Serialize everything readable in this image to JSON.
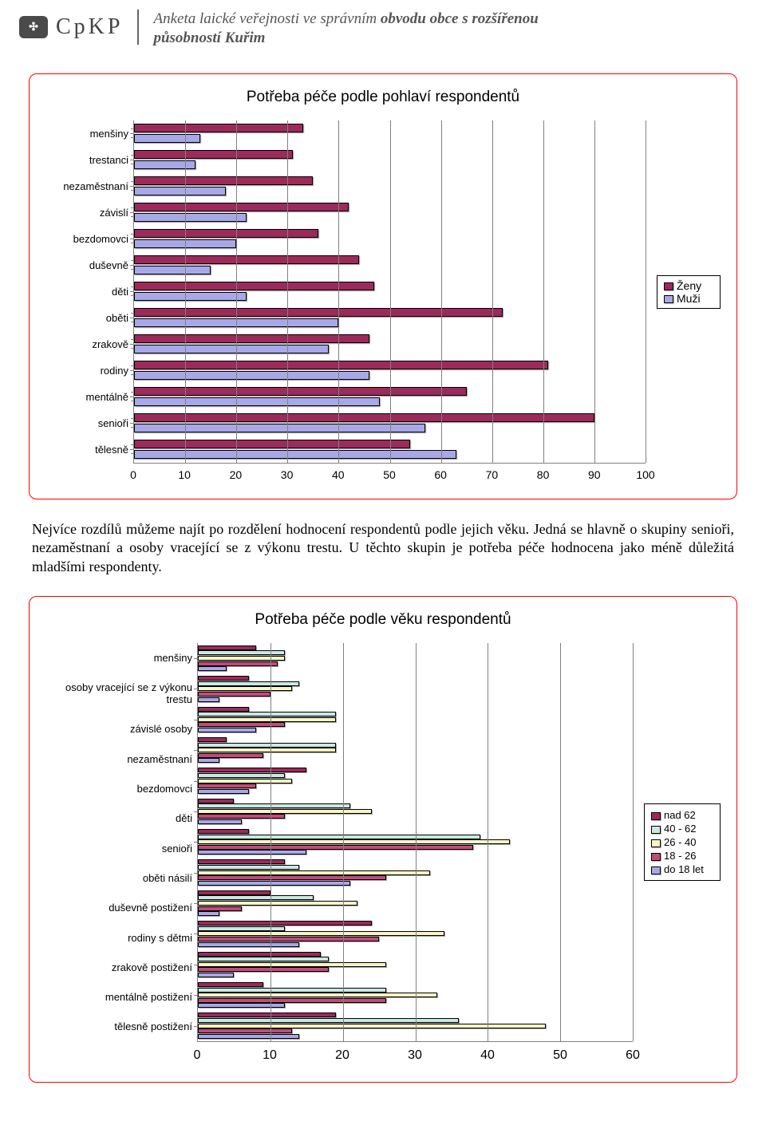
{
  "header": {
    "logo_text": "CpKP",
    "title_prefix": "Anketa laické veřejnosti ve správním",
    "title_bold1": "obvodu obce s rozšířenou působností",
    "title_bold2": "Kuřim"
  },
  "chart1": {
    "title": "Potřeba péče podle pohlaví respondentů",
    "xmax": 100,
    "xtick_step": 10,
    "grid_color": "#808080",
    "colors": {
      "zeny": "#9c2a5a",
      "muzi": "#a8a8e8"
    },
    "legend": [
      {
        "label": "Ženy",
        "color": "#9c2a5a"
      },
      {
        "label": "Muži",
        "color": "#a8a8e8"
      }
    ],
    "categories": [
      {
        "label": "menšiny",
        "zeny": 33,
        "muzi": 13
      },
      {
        "label": "trestanci",
        "zeny": 31,
        "muzi": 12
      },
      {
        "label": "nezaměstnaní",
        "zeny": 35,
        "muzi": 18
      },
      {
        "label": "závislí",
        "zeny": 42,
        "muzi": 22
      },
      {
        "label": "bezdomovci",
        "zeny": 36,
        "muzi": 20
      },
      {
        "label": "duševně",
        "zeny": 44,
        "muzi": 15
      },
      {
        "label": "děti",
        "zeny": 47,
        "muzi": 22
      },
      {
        "label": "oběti",
        "zeny": 72,
        "muzi": 40
      },
      {
        "label": "zrakově",
        "zeny": 46,
        "muzi": 38
      },
      {
        "label": "rodiny",
        "zeny": 81,
        "muzi": 46
      },
      {
        "label": "mentálně",
        "zeny": 65,
        "muzi": 48
      },
      {
        "label": "senioři",
        "zeny": 90,
        "muzi": 57
      },
      {
        "label": "tělesně",
        "zeny": 54,
        "muzi": 63
      }
    ]
  },
  "paragraph": "Nejvíce rozdílů můžeme najít po rozdělení hodnocení respondentů podle jejich věku. Jedná se hlavně o skupiny senioři, nezaměstnaní a osoby vracející se z výkonu trestu. U těchto skupin je potřeba péče hodnocena jako méně důležitá mladšími respondenty.",
  "chart2": {
    "title": "Potřeba péče podle věku respondentů",
    "xmax": 60,
    "xtick_step": 10,
    "grid_color": "#808080",
    "series": [
      {
        "key": "nad62",
        "label": "nad 62",
        "color": "#9c2a5a"
      },
      {
        "key": "g4062",
        "label": "40 - 62",
        "color": "#c8e8e4"
      },
      {
        "key": "g2640",
        "label": "26 - 40",
        "color": "#f8f4c4"
      },
      {
        "key": "g1826",
        "label": "18 - 26",
        "color": "#c44a7a"
      },
      {
        "key": "do18",
        "label": "do 18 let",
        "color": "#a8a8e8"
      }
    ],
    "categories": [
      {
        "label": "menšiny",
        "nad62": 8,
        "g4062": 12,
        "g2640": 12,
        "g1826": 11,
        "do18": 4
      },
      {
        "label": "osoby vracející se z výkonu trestu",
        "nad62": 7,
        "g4062": 14,
        "g2640": 13,
        "g1826": 10,
        "do18": 3
      },
      {
        "label": "závislé osoby",
        "nad62": 7,
        "g4062": 19,
        "g2640": 19,
        "g1826": 12,
        "do18": 8
      },
      {
        "label": "nezaměstnaní",
        "nad62": 4,
        "g4062": 19,
        "g2640": 19,
        "g1826": 9,
        "do18": 3
      },
      {
        "label": "bezdomovci",
        "nad62": 15,
        "g4062": 12,
        "g2640": 13,
        "g1826": 8,
        "do18": 7
      },
      {
        "label": "děti",
        "nad62": 5,
        "g4062": 21,
        "g2640": 24,
        "g1826": 12,
        "do18": 6
      },
      {
        "label": "senioři",
        "nad62": 7,
        "g4062": 39,
        "g2640": 43,
        "g1826": 38,
        "do18": 15
      },
      {
        "label": "oběti násilí",
        "nad62": 12,
        "g4062": 14,
        "g2640": 32,
        "g1826": 26,
        "do18": 21
      },
      {
        "label": "duševně postižení",
        "nad62": 10,
        "g4062": 16,
        "g2640": 22,
        "g1826": 6,
        "do18": 3
      },
      {
        "label": "rodiny s dětmi",
        "nad62": 24,
        "g4062": 12,
        "g2640": 34,
        "g1826": 25,
        "do18": 14
      },
      {
        "label": "zrakově postižení",
        "nad62": 17,
        "g4062": 18,
        "g2640": 26,
        "g1826": 18,
        "do18": 5
      },
      {
        "label": "mentálně postižení",
        "nad62": 9,
        "g4062": 26,
        "g2640": 33,
        "g1826": 26,
        "do18": 12
      },
      {
        "label": "tělesně postižení",
        "nad62": 19,
        "g4062": 36,
        "g2640": 48,
        "g1826": 13,
        "do18": 14
      }
    ]
  }
}
